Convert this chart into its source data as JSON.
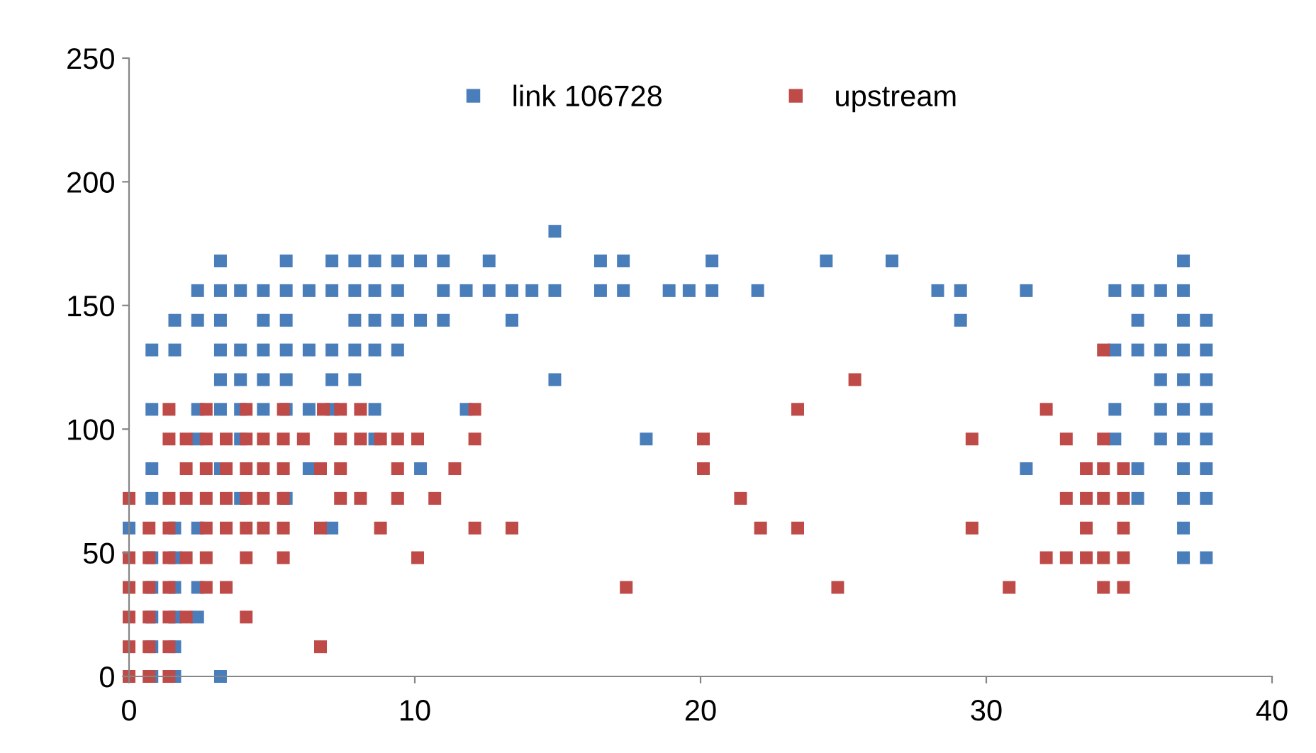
{
  "chart_data": {
    "type": "scatter",
    "marker": "square",
    "legend": "top",
    "grid": false,
    "xlim": [
      0,
      40
    ],
    "xticks": [
      0,
      10,
      20,
      30,
      40
    ],
    "ylim": [
      0,
      250
    ],
    "yticks": [
      0,
      50,
      100,
      150,
      200,
      250
    ],
    "series": [
      {
        "name": "link 106728",
        "color": "#4a7ebb",
        "x": [
          14.9,
          3.2,
          5.5,
          7.1,
          7.9,
          8.6,
          9.4,
          10.2,
          11.0,
          12.6,
          16.5,
          17.3,
          20.4,
          24.4,
          26.7,
          36.9,
          2.4,
          3.2,
          3.9,
          4.7,
          5.5,
          6.3,
          7.1,
          7.9,
          8.6,
          9.4,
          11.0,
          11.8,
          12.6,
          13.4,
          14.1,
          14.9,
          16.5,
          17.3,
          18.9,
          19.6,
          20.4,
          22.0,
          28.3,
          29.1,
          31.4,
          34.5,
          35.3,
          36.1,
          36.9,
          1.6,
          2.4,
          3.2,
          4.7,
          5.5,
          7.9,
          8.6,
          9.4,
          10.2,
          11.0,
          13.4,
          29.1,
          35.3,
          36.9,
          37.7,
          0.8,
          1.6,
          3.2,
          3.9,
          4.7,
          5.5,
          6.3,
          7.1,
          7.9,
          8.6,
          9.4,
          34.5,
          35.3,
          36.1,
          36.9,
          37.7,
          3.2,
          3.9,
          4.7,
          5.5,
          7.1,
          7.9,
          14.9,
          36.1,
          36.9,
          37.7,
          0.8,
          2.4,
          3.2,
          3.9,
          4.7,
          5.5,
          6.3,
          7.1,
          8.6,
          11.8,
          34.5,
          36.1,
          36.9,
          37.7,
          2.4,
          3.9,
          8.6,
          18.1,
          34.5,
          36.1,
          36.9,
          37.7,
          0.8,
          3.2,
          6.3,
          10.2,
          31.4,
          35.3,
          36.9,
          37.7,
          0.8,
          3.9,
          5.5,
          35.3,
          36.9,
          37.7,
          0,
          1.6,
          2.4,
          7.1,
          36.9,
          0.8,
          1.6,
          36.9,
          37.7,
          0.8,
          1.6,
          2.4,
          0.8,
          1.6,
          2.4,
          0.8,
          1.6,
          0.8,
          1.6,
          3.2
        ],
        "values": [
          180,
          168,
          168,
          168,
          168,
          168,
          168,
          168,
          168,
          168,
          168,
          168,
          168,
          168,
          168,
          168,
          156,
          156,
          156,
          156,
          156,
          156,
          156,
          156,
          156,
          156,
          156,
          156,
          156,
          156,
          156,
          156,
          156,
          156,
          156,
          156,
          156,
          156,
          156,
          156,
          156,
          156,
          156,
          156,
          156,
          144,
          144,
          144,
          144,
          144,
          144,
          144,
          144,
          144,
          144,
          144,
          144,
          144,
          144,
          144,
          132,
          132,
          132,
          132,
          132,
          132,
          132,
          132,
          132,
          132,
          132,
          132,
          132,
          132,
          132,
          132,
          120,
          120,
          120,
          120,
          120,
          120,
          120,
          120,
          120,
          120,
          108,
          108,
          108,
          108,
          108,
          108,
          108,
          108,
          108,
          108,
          108,
          108,
          108,
          108,
          96,
          96,
          96,
          96,
          96,
          96,
          96,
          96,
          84,
          84,
          84,
          84,
          84,
          84,
          84,
          84,
          72,
          72,
          72,
          72,
          72,
          72,
          60,
          60,
          60,
          60,
          60,
          48,
          48,
          48,
          48,
          36,
          36,
          36,
          24,
          24,
          24,
          12,
          12,
          0,
          0,
          0
        ]
      },
      {
        "name": "upstream",
        "color": "#be4b48",
        "x": [
          34.1,
          25.4,
          1.4,
          2.7,
          4.1,
          5.4,
          6.8,
          7.4,
          8.1,
          12.1,
          23.4,
          32.1,
          1.4,
          2.0,
          2.7,
          3.4,
          4.1,
          4.7,
          5.4,
          6.1,
          7.4,
          8.1,
          8.8,
          9.4,
          10.1,
          12.1,
          20.1,
          29.5,
          32.8,
          34.1,
          2.0,
          2.7,
          3.4,
          4.1,
          4.7,
          5.4,
          6.7,
          7.4,
          9.4,
          11.4,
          20.1,
          33.5,
          34.1,
          34.8,
          0,
          1.4,
          2.0,
          2.7,
          3.4,
          4.1,
          4.7,
          5.4,
          7.4,
          8.1,
          9.4,
          10.7,
          21.4,
          32.8,
          33.5,
          34.1,
          34.8,
          0.7,
          1.4,
          2.7,
          3.4,
          4.1,
          4.7,
          5.4,
          6.7,
          8.8,
          12.1,
          13.4,
          22.1,
          23.4,
          29.5,
          33.5,
          34.8,
          0,
          0.7,
          1.4,
          2.0,
          2.7,
          4.1,
          5.4,
          10.1,
          32.1,
          32.8,
          33.5,
          34.1,
          34.8,
          0,
          0.7,
          1.4,
          2.7,
          3.4,
          17.4,
          24.8,
          30.8,
          34.1,
          34.8,
          0,
          0.7,
          1.4,
          2.0,
          4.1,
          0,
          0.7,
          1.4,
          6.7,
          0,
          0.7,
          1.4
        ],
        "values": [
          132,
          120,
          108,
          108,
          108,
          108,
          108,
          108,
          108,
          108,
          108,
          108,
          96,
          96,
          96,
          96,
          96,
          96,
          96,
          96,
          96,
          96,
          96,
          96,
          96,
          96,
          96,
          96,
          96,
          96,
          84,
          84,
          84,
          84,
          84,
          84,
          84,
          84,
          84,
          84,
          84,
          84,
          84,
          84,
          72,
          72,
          72,
          72,
          72,
          72,
          72,
          72,
          72,
          72,
          72,
          72,
          72,
          72,
          72,
          72,
          72,
          60,
          60,
          60,
          60,
          60,
          60,
          60,
          60,
          60,
          60,
          60,
          60,
          60,
          60,
          60,
          60,
          48,
          48,
          48,
          48,
          48,
          48,
          48,
          48,
          48,
          48,
          48,
          48,
          48,
          36,
          36,
          36,
          36,
          36,
          36,
          36,
          36,
          36,
          36,
          24,
          24,
          24,
          24,
          24,
          12,
          12,
          12,
          12,
          0,
          0,
          0
        ]
      }
    ]
  }
}
